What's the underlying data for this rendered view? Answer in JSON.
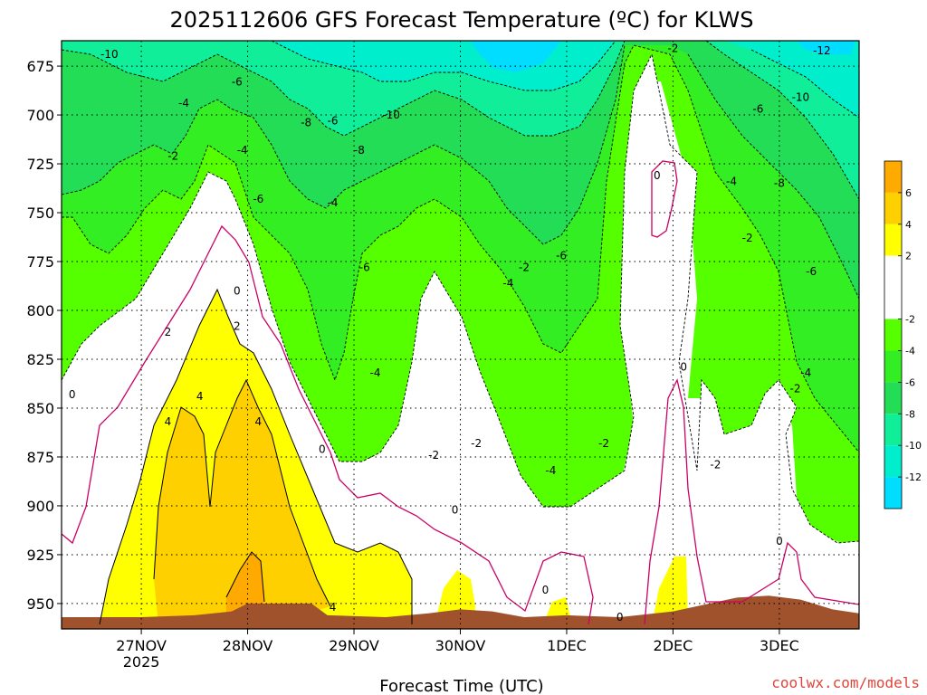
{
  "chart_data": {
    "type": "heatmap",
    "title": "2025112606 GFS Forecast Temperature (ºC) for KLWS",
    "xlabel": "Forecast Time (UTC)",
    "ylabel": "",
    "x_ticks": [
      {
        "label": "27NOV",
        "sub": "2025",
        "day": 0.0
      },
      {
        "label": "28NOV",
        "sub": "",
        "day": 1.0
      },
      {
        "label": "29NOV",
        "sub": "",
        "day": 2.0
      },
      {
        "label": "30NOV",
        "sub": "",
        "day": 3.0
      },
      {
        "label": "1DEC",
        "sub": "",
        "day": 4.0
      },
      {
        "label": "2DEC",
        "sub": "",
        "day": 5.0
      },
      {
        "label": "3DEC",
        "sub": "",
        "day": 6.0
      }
    ],
    "xlim_days": [
      -0.75,
      6.75
    ],
    "y_ticks": [
      675,
      700,
      725,
      750,
      775,
      800,
      825,
      850,
      875,
      900,
      925,
      950
    ],
    "ylim_mb": [
      662,
      963
    ],
    "grid": true,
    "colorbar": {
      "ticks": [
        "6",
        "4",
        "2",
        "-2",
        "-4",
        "-6",
        "-8",
        "-10",
        "-12"
      ],
      "bands": [
        {
          "range": "6 to 8",
          "color": "#ffaa00"
        },
        {
          "range": "4 to 6",
          "color": "#ffd000"
        },
        {
          "range": "2 to 4",
          "color": "#ffff00"
        },
        {
          "range": "0 to 2",
          "color": "#ffffff"
        },
        {
          "range": "-2 to 0",
          "color": "#ffffff"
        },
        {
          "range": "-4 to -2",
          "color": "#55ff00"
        },
        {
          "range": "-6 to -4",
          "color": "#33ee22"
        },
        {
          "range": "-8 to -6",
          "color": "#22dd55"
        },
        {
          "range": "-10 to -8",
          "color": "#11ee99"
        },
        {
          "range": "-12 to -10",
          "color": "#00eecc"
        },
        {
          "range": "-14 to -12",
          "color": "#00ddff"
        }
      ]
    },
    "terrain_color": "#a0522d",
    "zero_line_color": "#cc0066",
    "surface_mb": [
      [
        -0.75,
        957
      ],
      [
        0.0,
        957
      ],
      [
        0.5,
        956
      ],
      [
        0.85,
        954
      ],
      [
        1.0,
        950
      ],
      [
        1.6,
        950
      ],
      [
        1.75,
        956
      ],
      [
        2.3,
        957
      ],
      [
        2.7,
        955
      ],
      [
        3.0,
        953
      ],
      [
        3.3,
        954
      ],
      [
        3.6,
        957
      ],
      [
        4.0,
        956
      ],
      [
        4.5,
        957
      ],
      [
        5.0,
        954
      ],
      [
        5.6,
        947
      ],
      [
        5.9,
        946
      ],
      [
        6.2,
        948
      ],
      [
        6.5,
        953
      ],
      [
        6.75,
        955
      ]
    ],
    "isotherm_labels": [
      {
        "text": "-10",
        "day": -0.3,
        "mb": 669
      },
      {
        "text": "-10",
        "day": 2.35,
        "mb": 700
      },
      {
        "text": "-10",
        "day": 6.2,
        "mb": 691
      },
      {
        "text": "-12",
        "day": 6.4,
        "mb": 667
      },
      {
        "text": "-8",
        "day": 1.55,
        "mb": 704
      },
      {
        "text": "-8",
        "day": 2.05,
        "mb": 718
      },
      {
        "text": "-8",
        "day": 6.0,
        "mb": 735
      },
      {
        "text": "-6",
        "day": 0.9,
        "mb": 683
      },
      {
        "text": "-6",
        "day": 1.8,
        "mb": 703
      },
      {
        "text": "-6",
        "day": 1.1,
        "mb": 743
      },
      {
        "text": "-6",
        "day": 2.1,
        "mb": 778
      },
      {
        "text": "-6",
        "day": 3.95,
        "mb": 772
      },
      {
        "text": "-6",
        "day": 5.8,
        "mb": 697
      },
      {
        "text": "-6",
        "day": 6.3,
        "mb": 780
      },
      {
        "text": "-4",
        "day": 0.4,
        "mb": 694
      },
      {
        "text": "-4",
        "day": 0.95,
        "mb": 718
      },
      {
        "text": "-4",
        "day": 1.8,
        "mb": 745
      },
      {
        "text": "-4",
        "day": 2.2,
        "mb": 832
      },
      {
        "text": "-4",
        "day": 3.45,
        "mb": 786
      },
      {
        "text": "-4",
        "day": 5.55,
        "mb": 734
      },
      {
        "text": "-4",
        "day": 6.25,
        "mb": 832
      },
      {
        "text": "-4",
        "day": 3.85,
        "mb": 882
      },
      {
        "text": "-2",
        "day": 0.3,
        "mb": 721
      },
      {
        "text": "-2",
        "day": 3.6,
        "mb": 778
      },
      {
        "text": "-2",
        "day": 3.15,
        "mb": 868
      },
      {
        "text": "-2",
        "day": 2.75,
        "mb": 874
      },
      {
        "text": "-2",
        "day": 4.35,
        "mb": 868
      },
      {
        "text": "-2",
        "day": 5.7,
        "mb": 763
      },
      {
        "text": "-2",
        "day": 6.15,
        "mb": 840
      },
      {
        "text": "-2",
        "day": 5.4,
        "mb": 879
      },
      {
        "text": "-2",
        "day": 5.0,
        "mb": 666
      },
      {
        "text": "0",
        "day": -0.65,
        "mb": 843
      },
      {
        "text": "0",
        "day": 0.9,
        "mb": 790
      },
      {
        "text": "0",
        "day": 1.7,
        "mb": 871
      },
      {
        "text": "0",
        "day": 2.95,
        "mb": 902
      },
      {
        "text": "0",
        "day": 3.8,
        "mb": 943
      },
      {
        "text": "0",
        "day": 4.85,
        "mb": 731
      },
      {
        "text": "0",
        "day": 5.1,
        "mb": 829
      },
      {
        "text": "0",
        "day": 4.5,
        "mb": 957
      },
      {
        "text": "0",
        "day": 6.0,
        "mb": 918
      },
      {
        "text": "2",
        "day": 0.25,
        "mb": 811
      },
      {
        "text": "2",
        "day": 0.9,
        "mb": 808
      },
      {
        "text": "4",
        "day": 0.55,
        "mb": 844
      },
      {
        "text": "4",
        "day": 0.25,
        "mb": 857
      },
      {
        "text": "4",
        "day": 1.1,
        "mb": 857
      },
      {
        "text": "4",
        "day": 1.8,
        "mb": 952
      }
    ]
  },
  "credit": "coolwx.com/models"
}
